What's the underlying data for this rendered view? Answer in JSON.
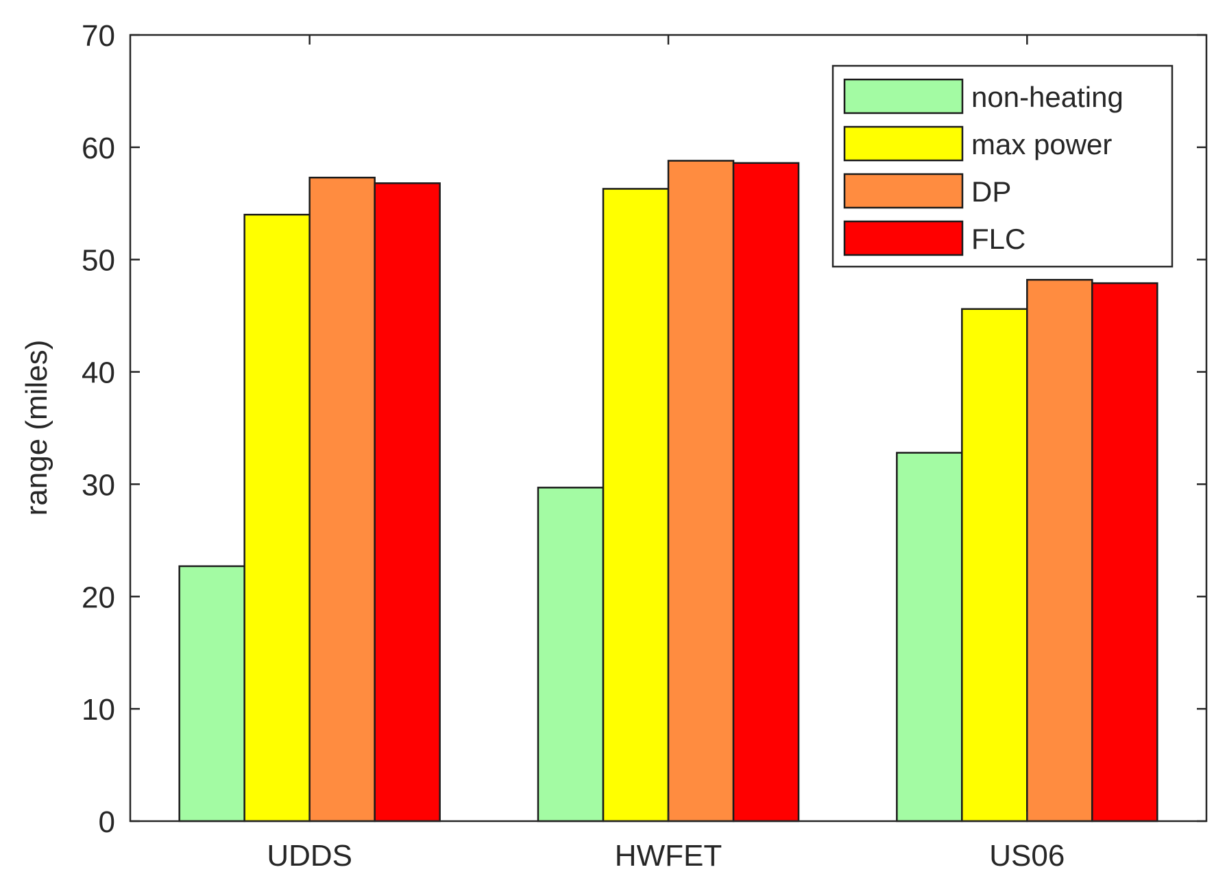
{
  "chart_data": {
    "type": "bar",
    "title": "",
    "xlabel": "",
    "ylabel": "range (miles)",
    "ylim": [
      0,
      70
    ],
    "yticks": [
      0,
      10,
      20,
      30,
      40,
      50,
      60,
      70
    ],
    "grid": false,
    "legend_position": "top-right",
    "categories": [
      "UDDS",
      "HWFET",
      "US06"
    ],
    "series": [
      {
        "name": "non-heating",
        "color": "#a3fba3",
        "values": [
          22.7,
          29.7,
          32.8
        ]
      },
      {
        "name": "max power",
        "color": "#ffff00",
        "values": [
          54.0,
          56.3,
          45.6
        ]
      },
      {
        "name": "DP",
        "color": "#ff8c40",
        "values": [
          57.3,
          58.8,
          48.2
        ]
      },
      {
        "name": "FLC",
        "color": "#ff0000",
        "values": [
          56.8,
          58.6,
          47.9
        ]
      }
    ]
  }
}
